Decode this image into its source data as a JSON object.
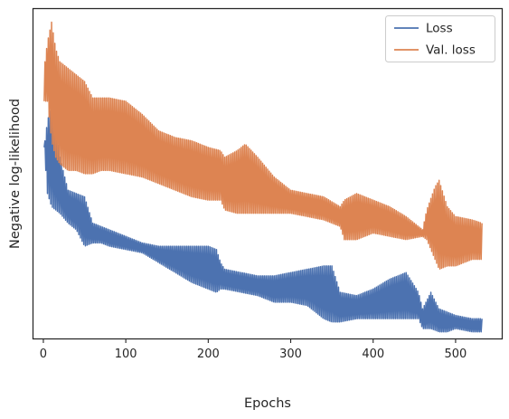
{
  "chart_data": {
    "type": "line",
    "xlabel": "Epochs",
    "ylabel": "Negative log-likelihood",
    "xlim": [
      -12,
      556
    ],
    "ylim": [
      0,
      100
    ],
    "x_ticks": [
      0,
      100,
      200,
      300,
      400,
      500
    ],
    "y_ticks_shown": false,
    "grid": false,
    "legend_position": "top-right",
    "n_epochs": 532,
    "series": [
      {
        "name": "Loss",
        "color": "#4c72b0",
        "envelope_x": [
          1,
          5,
          10,
          15,
          20,
          30,
          40,
          50,
          60,
          70,
          80,
          100,
          120,
          140,
          160,
          180,
          200,
          210,
          215,
          220,
          240,
          260,
          280,
          300,
          320,
          340,
          350,
          360,
          380,
          400,
          420,
          440,
          455,
          460,
          470,
          480,
          490,
          500,
          520,
          532
        ],
        "envelope_upper": [
          58,
          66,
          71,
          64,
          55,
          45,
          44,
          43,
          35,
          34,
          33,
          31,
          29,
          28,
          28,
          28,
          28,
          27,
          23,
          21,
          20,
          19,
          19,
          20,
          21,
          22,
          22,
          14,
          13,
          15,
          18,
          20,
          14,
          9,
          14,
          9,
          8,
          7,
          6,
          6
        ],
        "envelope_lower": [
          58,
          44,
          40,
          39,
          38,
          35,
          33,
          28,
          29,
          29,
          28,
          27,
          26,
          23,
          20,
          17,
          15,
          14,
          15,
          15,
          14,
          13,
          11,
          11,
          10,
          6,
          5,
          5,
          6,
          6,
          6,
          6,
          6,
          3,
          3,
          2,
          2,
          3,
          2,
          2
        ]
      },
      {
        "name": "Val. loss",
        "color": "#dd8452",
        "envelope_x": [
          1,
          5,
          10,
          15,
          20,
          30,
          40,
          50,
          60,
          70,
          80,
          100,
          120,
          140,
          160,
          180,
          200,
          215,
          220,
          235,
          245,
          260,
          280,
          300,
          320,
          340,
          360,
          365,
          380,
          400,
          420,
          440,
          460,
          465,
          475,
          480,
          490,
          500,
          520,
          532
        ],
        "envelope_upper": [
          82,
          90,
          96,
          88,
          84,
          82,
          80,
          78,
          73,
          73,
          73,
          72,
          68,
          63,
          61,
          60,
          58,
          57,
          55,
          57,
          59,
          55,
          49,
          45,
          44,
          43,
          40,
          42,
          44,
          42,
          40,
          37,
          33,
          39,
          46,
          48,
          40,
          37,
          36,
          35
        ],
        "envelope_lower": [
          72,
          72,
          60,
          55,
          53,
          51,
          51,
          50,
          50,
          51,
          51,
          50,
          49,
          47,
          45,
          43,
          42,
          42,
          39,
          38,
          38,
          38,
          38,
          38,
          37,
          36,
          34,
          30,
          30,
          32,
          31,
          30,
          31,
          30,
          24,
          21,
          22,
          22,
          24,
          24
        ]
      }
    ]
  }
}
